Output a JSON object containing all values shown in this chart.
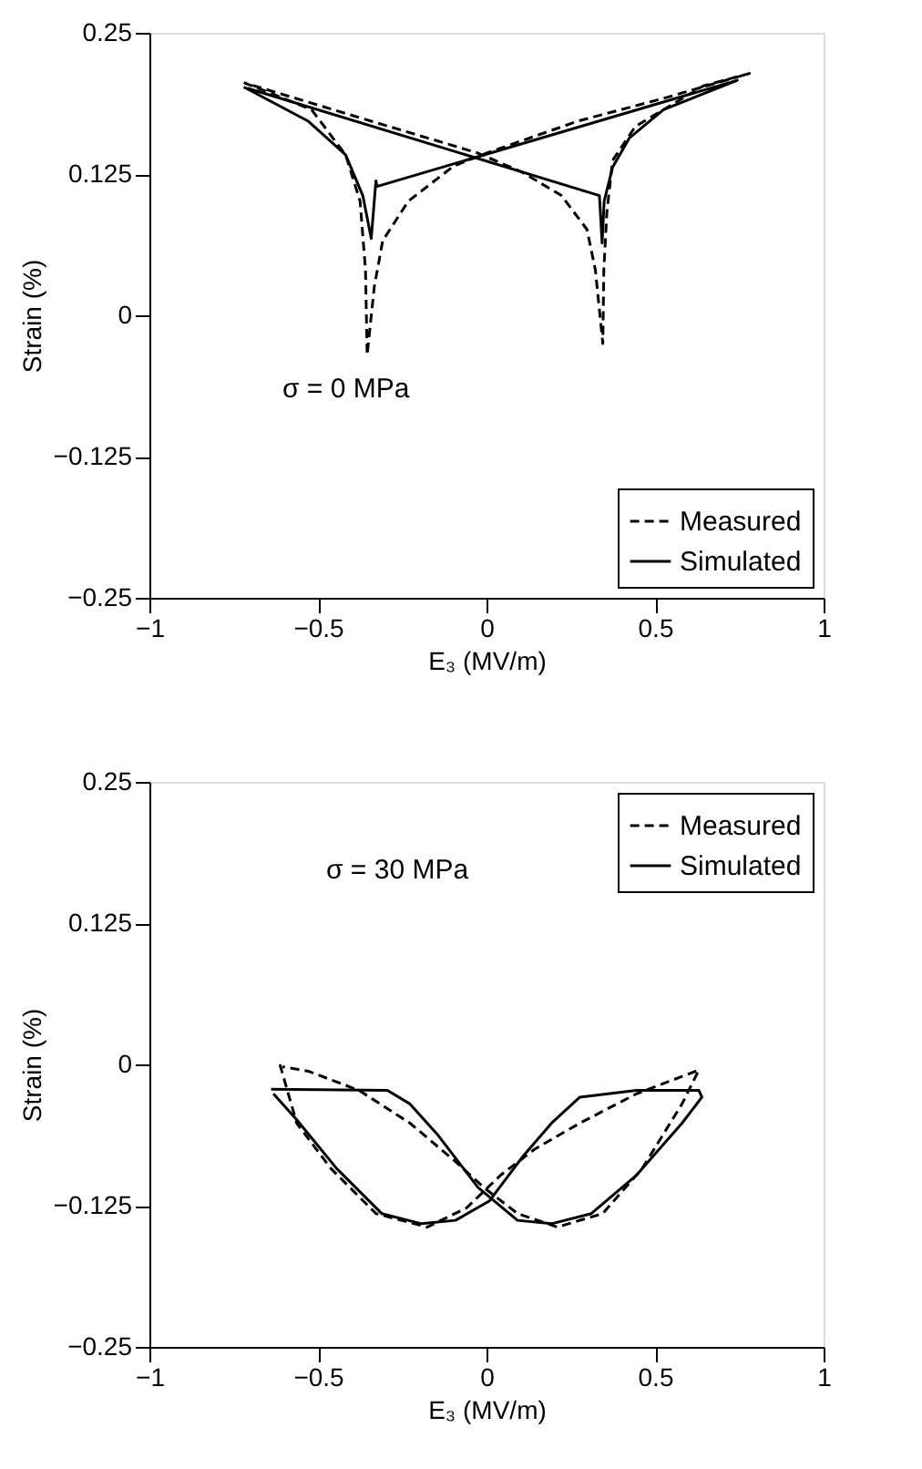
{
  "chart_data": [
    {
      "type": "line",
      "xlabel": "E₃ (MV/m)",
      "ylabel": "Strain (%)",
      "xlim": [
        -1,
        1
      ],
      "xticks": [
        -1,
        -0.5,
        0,
        0.5,
        1
      ],
      "ylim": [
        -0.25,
        0.25
      ],
      "yticks": [
        -0.25,
        -0.125,
        0,
        0.125,
        0.25
      ],
      "grid": false,
      "legend": "bottom right",
      "marker": "none",
      "annotations": [
        "σ = 0 MPa"
      ],
      "series": [
        {
          "name": "Measured",
          "color": "#000000",
          "line_style": "dashed",
          "x": [
            -0.72,
            -0.519,
            -0.418,
            -0.375,
            -0.359,
            -0.354,
            -0.333,
            -0.308,
            -0.232,
            -0.098,
            0.004,
            0.273,
            0.525,
            0.78,
            0.643,
            0.441,
            0.374,
            0.357,
            0.348,
            0.345,
            0.323,
            0.298,
            0.222,
            0.104,
            -0.03,
            -0.4,
            -0.71
          ],
          "values": [
            0.206,
            0.182,
            0.142,
            0.101,
            0.04,
            -0.035,
            0.025,
            0.066,
            0.101,
            0.132,
            0.144,
            0.172,
            0.192,
            0.214,
            0.203,
            0.167,
            0.137,
            0.091,
            0.04,
            -0.025,
            0.04,
            0.076,
            0.106,
            0.127,
            0.144,
            0.177,
            0.205
          ]
        },
        {
          "name": "Simulated",
          "color": "#000000",
          "line_style": "solid",
          "x": [
            -0.72,
            -0.53,
            -0.418,
            -0.367,
            -0.342,
            -0.328,
            -0.325,
            0.744,
            0.525,
            0.424,
            0.374,
            0.349,
            0.343,
            0.335,
            -0.71
          ],
          "values": [
            0.202,
            0.172,
            0.142,
            0.106,
            0.068,
            0.119,
            0.114,
            0.208,
            0.182,
            0.157,
            0.131,
            0.101,
            0.064,
            0.106,
            0.201
          ]
        }
      ]
    },
    {
      "type": "line",
      "xlabel": "E₃ (MV/m)",
      "ylabel": "Strain (%)",
      "xlim": [
        -1,
        1
      ],
      "xticks": [
        -1,
        -0.5,
        0,
        0.5,
        1
      ],
      "ylim": [
        -0.25,
        0.25
      ],
      "yticks": [
        -0.25,
        -0.125,
        0,
        0.125,
        0.25
      ],
      "grid": false,
      "legend": "top right",
      "marker": "none",
      "annotations": [
        "σ = 30 MPa"
      ],
      "series": [
        {
          "name": "Measured",
          "color": "#000000",
          "line_style": "dashed",
          "x": [
            -0.613,
            -0.563,
            -0.462,
            -0.328,
            -0.176,
            -0.059,
            0.042,
            0.143,
            0.277,
            0.445,
            0.63,
            0.58,
            0.462,
            0.345,
            0.21,
            0.092,
            -0.008,
            -0.092,
            -0.227,
            -0.378,
            -0.529,
            -0.605
          ],
          "values": [
            0,
            -0.052,
            -0.092,
            -0.132,
            -0.144,
            -0.127,
            -0.098,
            -0.075,
            -0.052,
            -0.026,
            -0.005,
            -0.035,
            -0.092,
            -0.132,
            -0.144,
            -0.132,
            -0.109,
            -0.086,
            -0.052,
            -0.023,
            -0.006,
            -0.002
          ]
        },
        {
          "name": "Simulated",
          "color": "#000000",
          "line_style": "solid",
          "x": [
            -0.639,
            -0.294,
            -0.227,
            -0.143,
            -0.025,
            0.092,
            0.193,
            0.311,
            0.445,
            0.58,
            0.639,
            0.63,
            0.445,
            0.277,
            0.193,
            0.109,
            0.008,
            -0.092,
            -0.193,
            -0.311,
            -0.445,
            -0.563,
            -0.632
          ],
          "values": [
            -0.022,
            -0.023,
            -0.035,
            -0.063,
            -0.109,
            -0.138,
            -0.141,
            -0.132,
            -0.098,
            -0.052,
            -0.029,
            -0.023,
            -0.023,
            -0.029,
            -0.052,
            -0.081,
            -0.121,
            -0.138,
            -0.141,
            -0.132,
            -0.092,
            -0.049,
            -0.026
          ]
        }
      ]
    }
  ]
}
